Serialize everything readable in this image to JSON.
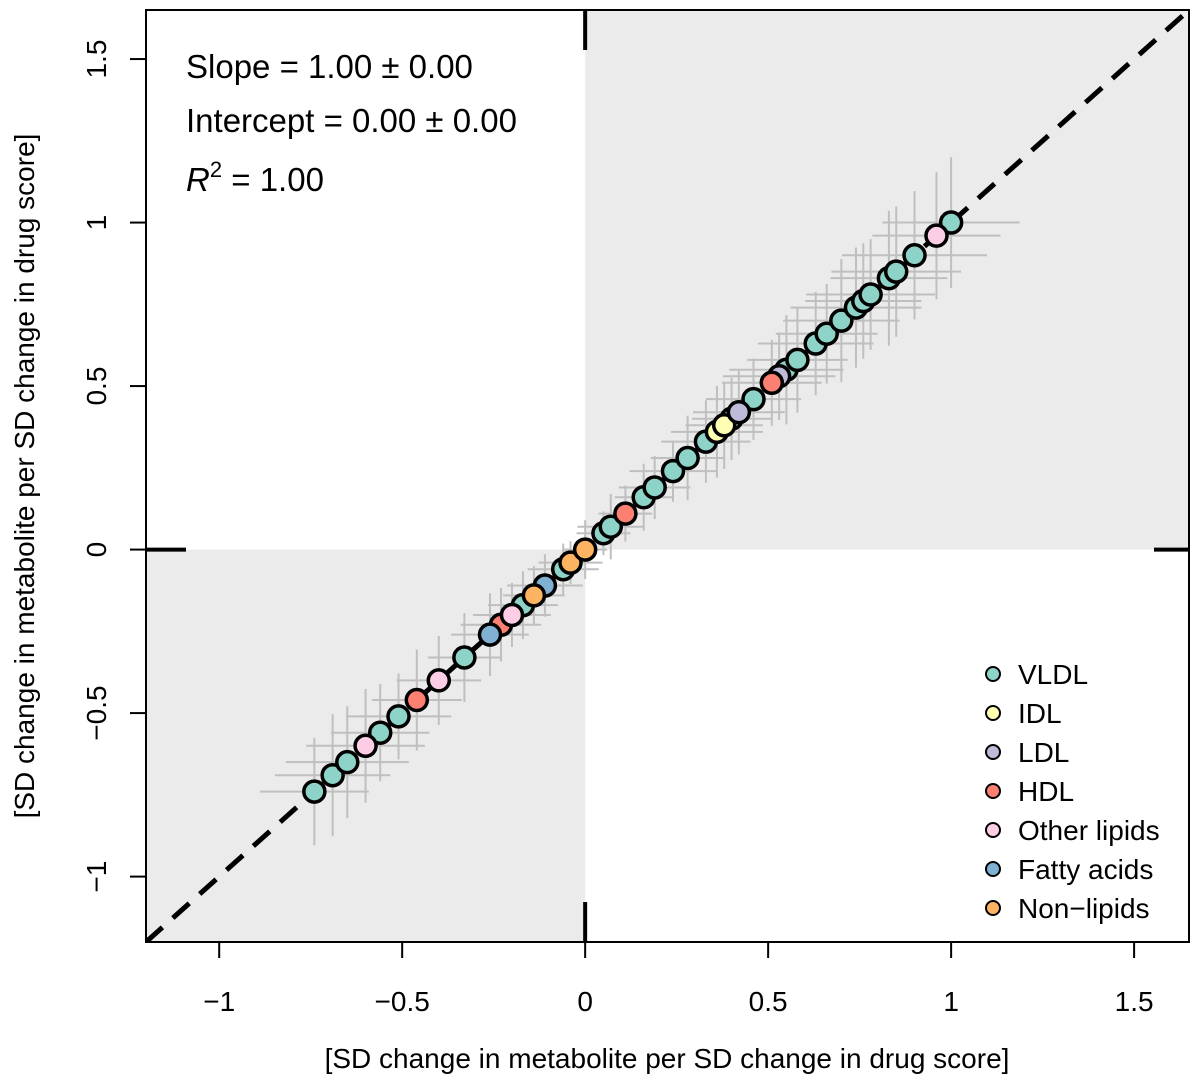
{
  "chart_data": {
    "type": "scatter",
    "xlabel": "[SD change in metabolite per SD change in drug score]",
    "ylabel": "[SD change in metabolite per SD change in drug score]",
    "xlim": [
      -1.2,
      1.65
    ],
    "ylim": [
      -1.2,
      1.65
    ],
    "x_ticks": [
      -1,
      -0.5,
      0,
      0.5,
      1,
      1.5
    ],
    "x_tick_labels": [
      "−1",
      "−0.5",
      "0",
      "0.5",
      "1",
      "1.5"
    ],
    "y_ticks": [
      -1,
      -0.5,
      0,
      0.5,
      1,
      1.5
    ],
    "y_tick_labels": [
      "−1",
      "−0.5",
      "0",
      "0.5",
      "1",
      "1.5"
    ],
    "grid": false,
    "reference_line": {
      "slope": 1,
      "intercept": 0,
      "style": "dashed",
      "color": "#000000"
    },
    "shaded_quadrants": [
      "x<0,y<0",
      "x>0,y>0"
    ],
    "shade_color": "#ebebeb",
    "error_bar_color": "#bfbfbf",
    "annotations": {
      "slope_text": "Slope = 1.00 ± 0.00",
      "intercept_text": "Intercept = 0.00 ± 0.00",
      "r2_symbol": "R",
      "r2_superscript": "2",
      "r2_value": " = 1.00"
    },
    "legend": {
      "placement": "bottom-right",
      "entries": [
        {
          "label": "VLDL",
          "color": "#8dd3c7"
        },
        {
          "label": "IDL",
          "color": "#ffffb3"
        },
        {
          "label": "LDL",
          "color": "#bebada"
        },
        {
          "label": "HDL",
          "color": "#fb8072"
        },
        {
          "label": "Other lipids",
          "color": "#fccde5"
        },
        {
          "label": "Fatty acids",
          "color": "#80b1d3"
        },
        {
          "label": "Non−lipids",
          "color": "#fdb462"
        }
      ]
    },
    "series": [
      {
        "name": "VLDL",
        "color": "#8dd3c7",
        "x": [
          -0.74,
          -0.69,
          -0.65,
          -0.56,
          -0.51,
          -0.33,
          -0.17,
          -0.06,
          0.05,
          0.07,
          0.16,
          0.19,
          0.24,
          0.28,
          0.33,
          0.4,
          0.46,
          0.55,
          0.58,
          0.63,
          0.66,
          0.7,
          0.74,
          0.76,
          0.78,
          0.83,
          0.85,
          0.9,
          1.0
        ],
        "y": [
          -0.74,
          -0.69,
          -0.65,
          -0.56,
          -0.51,
          -0.33,
          -0.17,
          -0.06,
          0.05,
          0.07,
          0.16,
          0.19,
          0.24,
          0.28,
          0.33,
          0.4,
          0.46,
          0.55,
          0.58,
          0.63,
          0.66,
          0.7,
          0.74,
          0.76,
          0.78,
          0.83,
          0.85,
          0.9,
          1.0
        ]
      },
      {
        "name": "IDL",
        "color": "#ffffb3",
        "x": [
          0.36,
          0.38
        ],
        "y": [
          0.36,
          0.38
        ]
      },
      {
        "name": "LDL",
        "color": "#bebada",
        "x": [
          0.42,
          0.53
        ],
        "y": [
          0.42,
          0.53
        ]
      },
      {
        "name": "HDL",
        "color": "#fb8072",
        "x": [
          -0.46,
          -0.23,
          0.11,
          0.51
        ],
        "y": [
          -0.46,
          -0.23,
          0.11,
          0.51
        ]
      },
      {
        "name": "Other lipids",
        "color": "#fccde5",
        "x": [
          -0.6,
          -0.4,
          -0.2,
          0.96
        ],
        "y": [
          -0.6,
          -0.4,
          -0.2,
          0.96
        ]
      },
      {
        "name": "Fatty acids",
        "color": "#80b1d3",
        "x": [
          -0.26,
          -0.11
        ],
        "y": [
          -0.26,
          -0.11
        ]
      },
      {
        "name": "Non−lipids",
        "color": "#fdb462",
        "x": [
          -0.14,
          -0.04,
          0.0
        ],
        "y": [
          -0.14,
          -0.04,
          0.0
        ]
      }
    ]
  }
}
